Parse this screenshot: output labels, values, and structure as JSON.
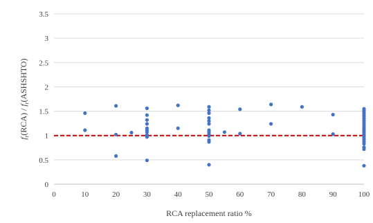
{
  "chart_data": {
    "type": "scatter",
    "title": "",
    "xlabel": "RCA replacement ratio %",
    "ylabel_parts": {
      "left_f": "f",
      "left_sub": "r",
      "left_rest": "(RCA) /",
      "right_f": "f",
      "right_sub": "r",
      "right_rest": "(ASHSHTO)"
    },
    "xlim": [
      0,
      100
    ],
    "ylim": [
      0,
      3.5
    ],
    "xticks": [
      0,
      10,
      20,
      30,
      40,
      50,
      60,
      70,
      80,
      90,
      100
    ],
    "yticks": [
      0,
      0.5,
      1,
      1.5,
      2,
      2.5,
      3,
      3.5
    ],
    "ytick_labels": [
      "0",
      "0.5",
      "1",
      "1.5",
      "2",
      "2.5",
      "3",
      "3.5"
    ],
    "grid": "horizontal",
    "legend": "none",
    "point_color": "#4472C4",
    "reference_line": {
      "y": 1.0,
      "style": "dashed",
      "color": "#C00000"
    },
    "points": [
      {
        "x": 10,
        "y": 1.46
      },
      {
        "x": 10,
        "y": 1.11
      },
      {
        "x": 20,
        "y": 1.61
      },
      {
        "x": 20,
        "y": 1.02
      },
      {
        "x": 20,
        "y": 0.58
      },
      {
        "x": 25,
        "y": 1.06
      },
      {
        "x": 30,
        "y": 1.56
      },
      {
        "x": 30,
        "y": 1.42
      },
      {
        "x": 30,
        "y": 1.32
      },
      {
        "x": 30,
        "y": 1.24
      },
      {
        "x": 30,
        "y": 1.15
      },
      {
        "x": 30,
        "y": 1.11
      },
      {
        "x": 30,
        "y": 1.07
      },
      {
        "x": 30,
        "y": 1.01
      },
      {
        "x": 30,
        "y": 0.97
      },
      {
        "x": 30,
        "y": 0.49
      },
      {
        "x": 40,
        "y": 1.62
      },
      {
        "x": 40,
        "y": 1.15
      },
      {
        "x": 50,
        "y": 1.59
      },
      {
        "x": 50,
        "y": 1.52
      },
      {
        "x": 50,
        "y": 1.46
      },
      {
        "x": 50,
        "y": 1.36
      },
      {
        "x": 50,
        "y": 1.3
      },
      {
        "x": 50,
        "y": 1.24
      },
      {
        "x": 50,
        "y": 1.11
      },
      {
        "x": 50,
        "y": 1.07
      },
      {
        "x": 50,
        "y": 1.03
      },
      {
        "x": 50,
        "y": 0.99
      },
      {
        "x": 50,
        "y": 0.91
      },
      {
        "x": 50,
        "y": 0.87
      },
      {
        "x": 50,
        "y": 0.4
      },
      {
        "x": 55,
        "y": 1.07
      },
      {
        "x": 60,
        "y": 1.54
      },
      {
        "x": 60,
        "y": 1.04
      },
      {
        "x": 70,
        "y": 1.64
      },
      {
        "x": 70,
        "y": 1.24
      },
      {
        "x": 80,
        "y": 1.59
      },
      {
        "x": 90,
        "y": 1.43
      },
      {
        "x": 90,
        "y": 1.03
      },
      {
        "x": 100,
        "y": 1.55
      },
      {
        "x": 100,
        "y": 1.51
      },
      {
        "x": 100,
        "y": 1.47
      },
      {
        "x": 100,
        "y": 1.43
      },
      {
        "x": 100,
        "y": 1.39
      },
      {
        "x": 100,
        "y": 1.35
      },
      {
        "x": 100,
        "y": 1.31
      },
      {
        "x": 100,
        "y": 1.27
      },
      {
        "x": 100,
        "y": 1.23
      },
      {
        "x": 100,
        "y": 1.19
      },
      {
        "x": 100,
        "y": 1.15
      },
      {
        "x": 100,
        "y": 1.11
      },
      {
        "x": 100,
        "y": 1.07
      },
      {
        "x": 100,
        "y": 1.03
      },
      {
        "x": 100,
        "y": 0.99
      },
      {
        "x": 100,
        "y": 0.95
      },
      {
        "x": 100,
        "y": 0.91
      },
      {
        "x": 100,
        "y": 0.87
      },
      {
        "x": 100,
        "y": 0.83
      },
      {
        "x": 100,
        "y": 0.76
      },
      {
        "x": 100,
        "y": 0.72
      },
      {
        "x": 100,
        "y": 0.38
      }
    ]
  }
}
